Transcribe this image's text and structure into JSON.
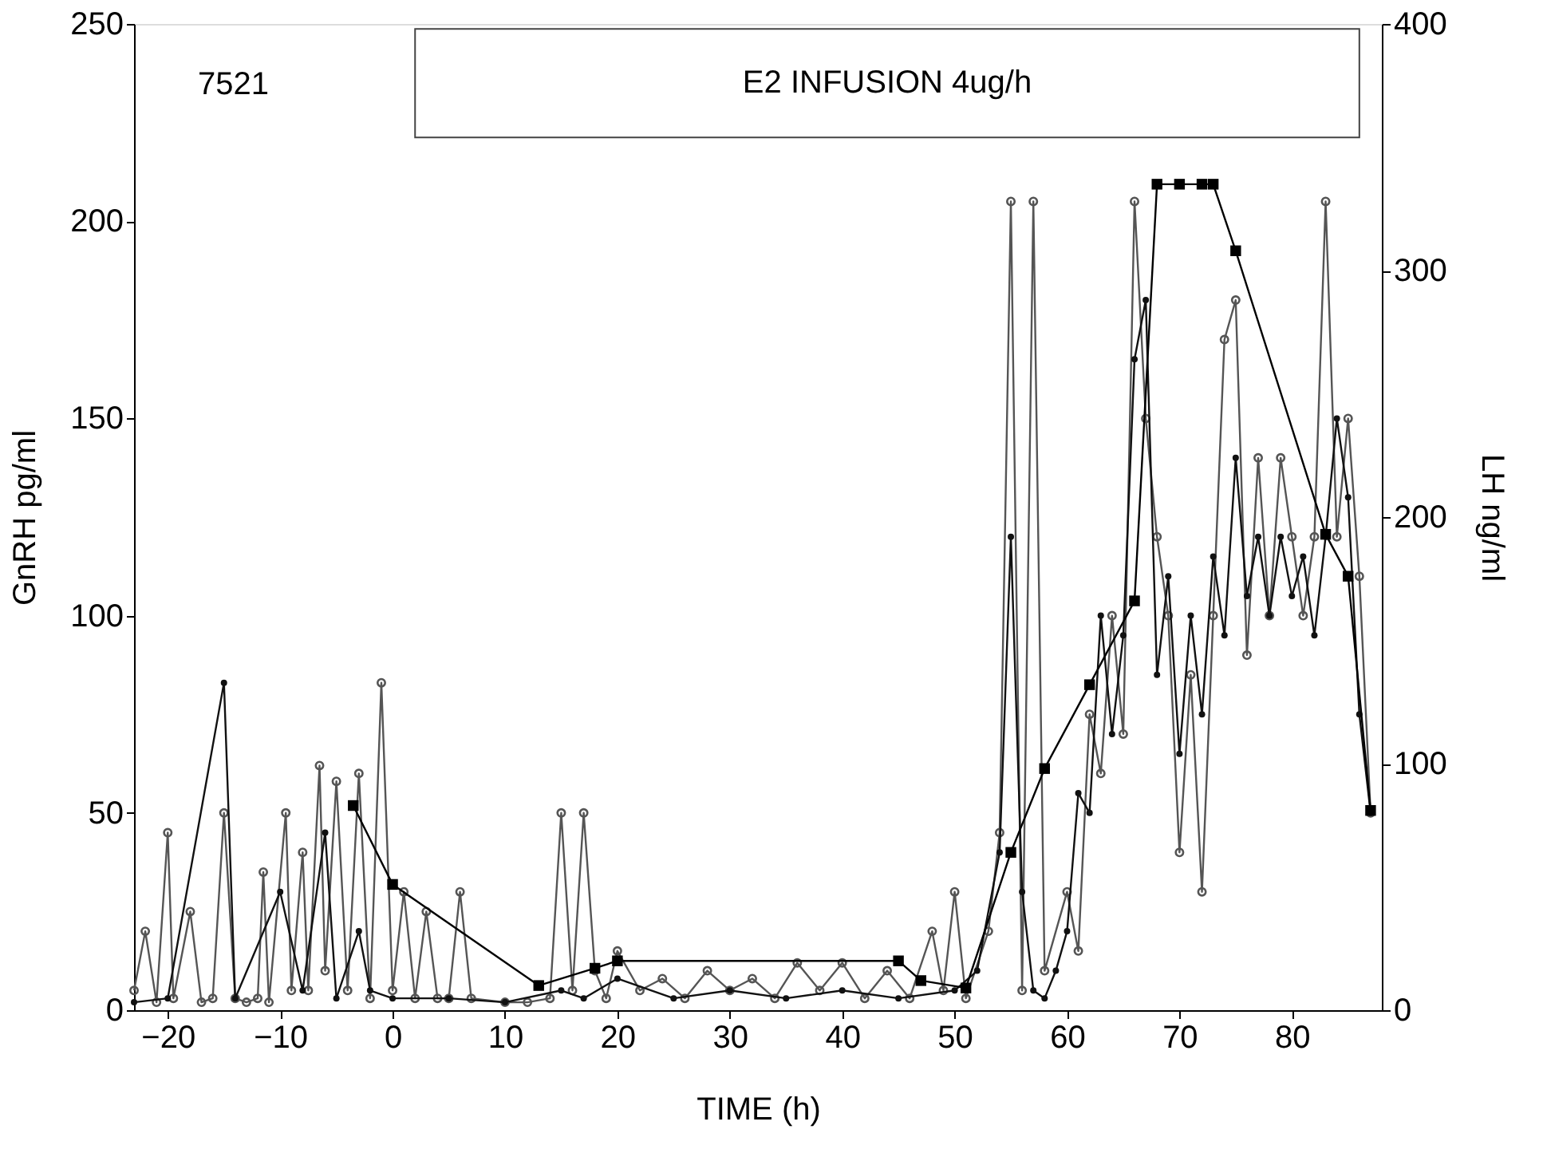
{
  "chart_data": {
    "type": "line",
    "xlabel": "TIME (h)",
    "ylabel": "GnRH pg/ml",
    "y2label": "LH ng/ml",
    "annotations": [
      "7521"
    ],
    "bands": [
      {
        "axis": "x",
        "from": 2,
        "to": 86,
        "label": "E2 INFUSION 4ug/h"
      }
    ],
    "xlim": [
      -23,
      88
    ],
    "xticks": [
      -20,
      -10,
      0,
      10,
      20,
      30,
      40,
      50,
      60,
      70,
      80
    ],
    "ylim": [
      0,
      250
    ],
    "yticks": [
      0,
      50,
      100,
      150,
      200,
      250
    ],
    "y2lim": [
      0,
      400
    ],
    "y2ticks": [
      0,
      100,
      200,
      300,
      400
    ],
    "grid": false,
    "series": [
      {
        "color": "#555555",
        "marker": "circle",
        "x": [
          -23,
          -22,
          -21,
          -20,
          -19.5,
          -18,
          -17,
          -16,
          -15,
          -14,
          -13,
          -12,
          -11.5,
          -11,
          -9.5,
          -9,
          -8,
          -7.5,
          -6.5,
          -6,
          -5,
          -4,
          -3,
          -2,
          -1,
          0,
          1,
          2,
          3,
          4,
          5,
          6,
          7,
          10,
          12,
          14,
          15,
          16,
          17,
          18,
          19,
          20,
          22,
          24,
          26,
          28,
          30,
          32,
          34,
          36,
          38,
          40,
          42,
          44,
          46,
          48,
          49,
          50,
          51,
          53,
          54,
          55,
          56,
          57,
          58,
          60,
          61,
          62,
          63,
          64,
          65,
          66,
          67,
          68,
          69,
          70,
          71,
          72,
          73,
          74,
          75,
          76,
          77,
          78,
          79,
          80,
          81,
          82,
          83,
          84,
          85,
          86,
          87
        ],
        "values": [
          5,
          20,
          2,
          45,
          3,
          25,
          2,
          3,
          50,
          3,
          2,
          3,
          35,
          2,
          50,
          5,
          40,
          5,
          62,
          10,
          58,
          5,
          60,
          3,
          83,
          5,
          30,
          3,
          25,
          3,
          3,
          30,
          3,
          2,
          2,
          3,
          50,
          5,
          50,
          10,
          3,
          15,
          5,
          8,
          3,
          10,
          5,
          8,
          3,
          12,
          5,
          12,
          3,
          10,
          3,
          20,
          5,
          30,
          3,
          20,
          45,
          205,
          5,
          205,
          10,
          30,
          15,
          75,
          60,
          100,
          70,
          205,
          150,
          120,
          100,
          40,
          85,
          30,
          100,
          170,
          180,
          90,
          140,
          100,
          140,
          120,
          100,
          120,
          205,
          120,
          150,
          110,
          50
        ]
      },
      {
        "color": "#111111",
        "marker": "dot",
        "x": [
          -23,
          -20,
          -15,
          -14,
          -10,
          -8,
          -6,
          -5,
          -3,
          -2,
          0,
          5,
          10,
          15,
          17,
          20,
          25,
          30,
          35,
          40,
          45,
          50,
          52,
          54,
          55,
          56,
          57,
          58,
          59,
          60,
          61,
          62,
          63,
          64,
          65,
          66,
          67,
          68,
          69,
          70,
          71,
          72,
          73,
          74,
          75,
          76,
          77,
          78,
          79,
          80,
          81,
          82,
          83,
          84,
          85,
          86,
          87
        ],
        "values": [
          2,
          3,
          83,
          3,
          30,
          5,
          45,
          3,
          20,
          5,
          3,
          3,
          2,
          5,
          3,
          8,
          3,
          5,
          3,
          5,
          3,
          5,
          10,
          40,
          120,
          30,
          5,
          3,
          10,
          20,
          55,
          50,
          100,
          70,
          95,
          165,
          180,
          85,
          110,
          65,
          100,
          75,
          115,
          95,
          140,
          105,
          120,
          100,
          120,
          105,
          115,
          95,
          120,
          150,
          130,
          75,
          50
        ]
      },
      {
        "color": "#000000",
        "marker": "square",
        "axis": "y2",
        "x": [
          -3.5,
          0,
          13,
          18,
          20,
          45,
          47,
          51,
          55,
          58,
          62,
          66,
          68,
          70,
          72,
          73,
          75,
          83,
          85,
          87
        ],
        "values": [
          83,
          51,
          10,
          17,
          20,
          20,
          12,
          9,
          64,
          98,
          132,
          166,
          335,
          335,
          335,
          335,
          308,
          193,
          176,
          81
        ]
      }
    ]
  }
}
